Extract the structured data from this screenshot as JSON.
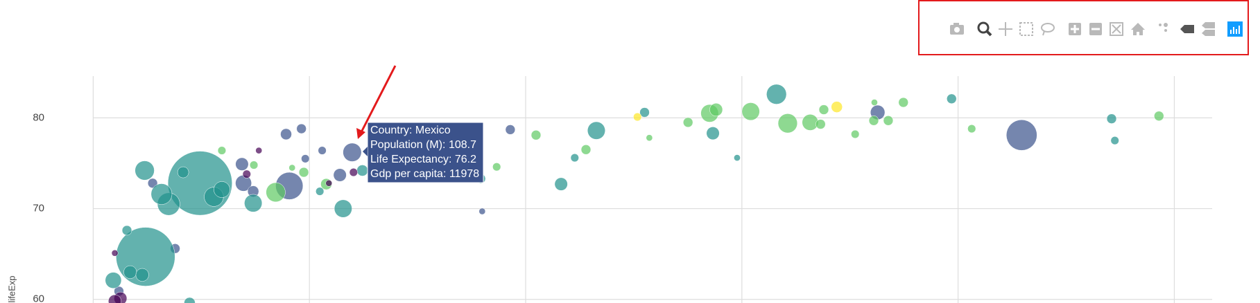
{
  "chart_data": {
    "type": "scatter",
    "y_label": "lifeExp",
    "xlim": [
      0,
      51750
    ],
    "ylim": [
      59.6,
      84.6
    ],
    "xticks": [
      0,
      10000,
      20000,
      30000,
      40000,
      50000
    ],
    "yticks": [
      60,
      70,
      80
    ],
    "grid": true,
    "series": [
      {
        "color": "#3b528b",
        "x": [
          11978,
          9070,
          8920,
          9630,
          6880,
          6950,
          9810,
          10590,
          11410,
          2750,
          3790,
          17990,
          19290,
          36280,
          42940,
          7400,
          1190
        ],
        "values": [
          76.2,
          72.5,
          78.2,
          78.8,
          74.9,
          72.8,
          75.5,
          76.4,
          73.7,
          72.8,
          65.6,
          69.7,
          78.7,
          80.6,
          78.1,
          71.9,
          60.9
        ],
        "sizes": [
          108.7,
          239,
          40,
          30,
          53,
          83,
          21,
          21,
          53,
          30,
          30,
          13,
          30,
          67,
          301,
          40,
          30
        ]
      },
      {
        "color": "#21918c",
        "x": [
          4940,
          2420,
          2380,
          3490,
          3160,
          4160,
          5580,
          5950,
          7400,
          11560,
          12450,
          17920,
          21640,
          23270,
          25500,
          28660,
          31600,
          39700,
          47100,
          47250,
          22270,
          29780,
          930,
          1560,
          1710,
          2270,
          4460,
          10480
        ],
        "values": [
          72.8,
          64.7,
          74.2,
          70.5,
          71.6,
          74.0,
          71.3,
          72.1,
          70.6,
          70.0,
          74.2,
          73.3,
          72.7,
          78.6,
          80.6,
          78.3,
          82.6,
          82.1,
          79.9,
          77.5,
          75.6,
          75.6,
          62.1,
          67.6,
          63.0,
          62.7,
          59.6,
          71.9
        ],
        "sizes": [
          1318,
          1110,
          119,
          162,
          140,
          40,
          119,
          83,
          100,
          100,
          40,
          30,
          53,
          100,
          30,
          53,
          127,
          30,
          30,
          21,
          21,
          13,
          83,
          30,
          53,
          53,
          40,
          21
        ]
      },
      {
        "color": "#5ec962",
        "x": [
          8440,
          9740,
          10780,
          9200,
          7430,
          5950,
          18660,
          20480,
          22790,
          25720,
          27510,
          28510,
          28810,
          30410,
          32120,
          33160,
          33640,
          33790,
          35240,
          36100,
          36130,
          36770,
          37470,
          40630,
          49290
        ],
        "values": [
          71.8,
          74.0,
          72.7,
          74.5,
          74.8,
          76.4,
          74.6,
          78.1,
          76.5,
          77.8,
          79.5,
          80.5,
          80.9,
          80.7,
          79.4,
          79.5,
          79.3,
          80.9,
          78.2,
          79.7,
          81.7,
          79.7,
          81.7,
          78.8,
          80.2
        ],
        "sizes": [
          119,
          30,
          40,
          13,
          21,
          21,
          21,
          30,
          30,
          13,
          30,
          100,
          53,
          100,
          119,
          83,
          30,
          30,
          21,
          30,
          13,
          30,
          30,
          21,
          30
        ]
      },
      {
        "color": "#fde725",
        "x": [
          34390,
          25170
        ],
        "values": [
          81.2,
          80.1
        ],
        "sizes": [
          40,
          21
        ]
      },
      {
        "color": "#440154",
        "x": [
          7660,
          7100,
          12040,
          10900,
          1000,
          1260,
          1000
        ],
        "values": [
          76.4,
          73.8,
          74.0,
          72.8,
          65.1,
          60.1,
          59.8
        ],
        "sizes": [
          13,
          21,
          21,
          13,
          13,
          53,
          53
        ]
      }
    ],
    "tooltip": {
      "lines": [
        "Country: Mexico",
        "Population (M): 108.7",
        "Life Expectancy: 76.2",
        "Gdp per capita: 11978"
      ]
    }
  }
}
